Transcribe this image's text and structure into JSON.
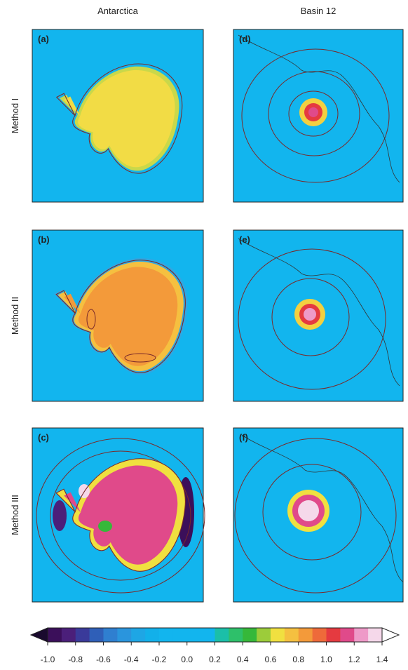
{
  "columns": [
    "Antarctica",
    "Basin 12"
  ],
  "rows": [
    "Method I",
    "Method II",
    "Method III"
  ],
  "panels": [
    "(a)",
    "(d)",
    "(b)",
    "(e)",
    "(c)",
    "(f)"
  ],
  "colorbar": {
    "xlim": [
      -1.0,
      1.4
    ],
    "ticks": [
      {
        "value": -1.0,
        "label": "-1.0"
      },
      {
        "value": -0.8,
        "label": "-0.8"
      },
      {
        "value": -0.6,
        "label": "-0.6"
      },
      {
        "value": -0.4,
        "label": "-0.4"
      },
      {
        "value": -0.2,
        "label": "-0.2"
      },
      {
        "value": 0.0,
        "label": "0.0"
      },
      {
        "value": 0.2,
        "label": "0.2"
      },
      {
        "value": 0.4,
        "label": "0.4"
      },
      {
        "value": 0.6,
        "label": "0.6"
      },
      {
        "value": 0.8,
        "label": "0.8"
      },
      {
        "value": 1.0,
        "label": "1.0"
      },
      {
        "value": 1.2,
        "label": "1.2"
      },
      {
        "value": 1.4,
        "label": "1.4"
      }
    ],
    "colors": [
      "#3b0f5a",
      "#4b1f7a",
      "#3a3a9a",
      "#2f5fb8",
      "#2f7fd0",
      "#2a95dd",
      "#1ea6e5",
      "#12b0ea",
      "#12b5ee",
      "#12b5ee",
      "#12b5ee",
      "#12b5ee",
      "#1bbfa8",
      "#2ec06a",
      "#36b83a",
      "#9ccc3a",
      "#f0e040",
      "#f5c040",
      "#f39a3a",
      "#ee6a3a",
      "#e53a40",
      "#e04a8a",
      "#ee9ac8",
      "#f5d8ea"
    ],
    "under": "#1a0a2e",
    "over": "#ffffff"
  }
}
